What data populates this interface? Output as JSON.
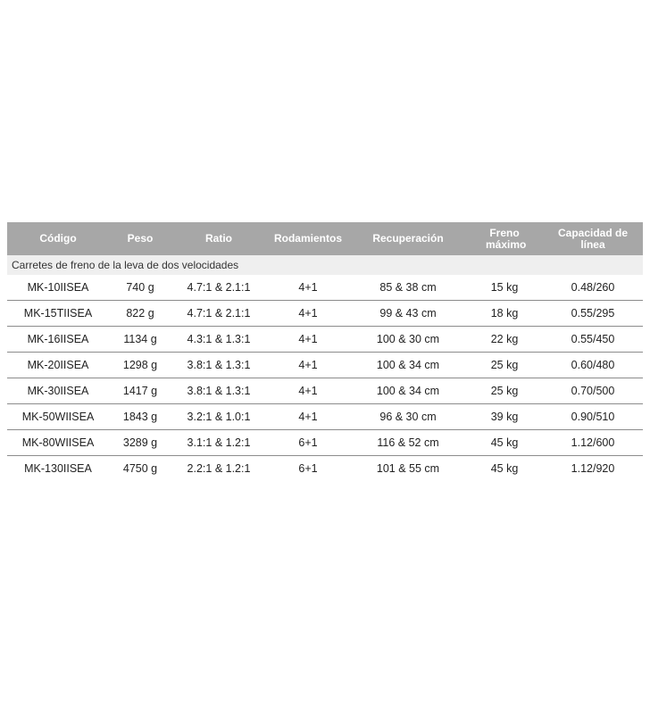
{
  "table": {
    "headers": [
      "Código",
      "Peso",
      "Ratio",
      "Rodamientos",
      "Recuperación",
      "Freno máximo",
      "Capacidad de línea"
    ],
    "group_label": "Carretes de freno de la leva de dos velocidades",
    "rows": [
      [
        "MK-10IISEA",
        "740 g",
        "4.7:1 & 2.1:1",
        "4+1",
        "85 & 38 cm",
        "15 kg",
        "0.48/260"
      ],
      [
        "MK-15TIISEA",
        "822 g",
        "4.7:1 & 2.1:1",
        "4+1",
        "99 & 43 cm",
        "18 kg",
        "0.55/295"
      ],
      [
        "MK-16IISEA",
        "1134 g",
        "4.3:1 & 1.3:1",
        "4+1",
        "100 & 30 cm",
        "22 kg",
        "0.55/450"
      ],
      [
        "MK-20IISEA",
        "1298 g",
        "3.8:1 & 1.3:1",
        "4+1",
        "100 & 34 cm",
        "25 kg",
        "0.60/480"
      ],
      [
        "MK-30IISEA",
        "1417 g",
        "3.8:1 & 1.3:1",
        "4+1",
        "100 & 34 cm",
        "25 kg",
        "0.70/500"
      ],
      [
        "MK-50WIISEA",
        "1843 g",
        "3.2:1 & 1.0:1",
        "4+1",
        "96 & 30 cm",
        "39 kg",
        "0.90/510"
      ],
      [
        "MK-80WIISEA",
        "3289 g",
        "3.1:1 & 1.2:1",
        "6+1",
        "116 & 52 cm",
        "45 kg",
        "1.12/600"
      ],
      [
        "MK-130IISEA",
        "4750 g",
        "2.2:1 & 1.2:1",
        "6+1",
        "101 & 55 cm",
        "45 kg",
        "1.12/920"
      ]
    ]
  }
}
